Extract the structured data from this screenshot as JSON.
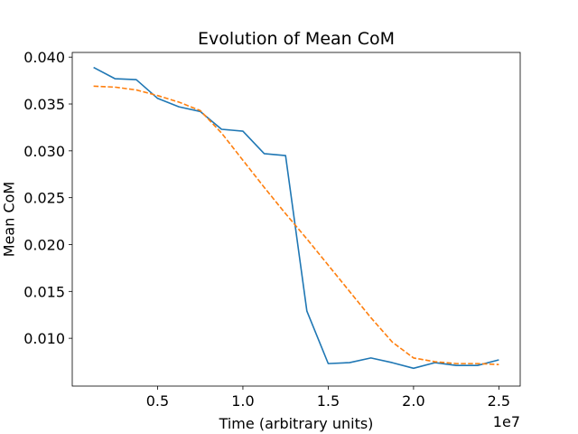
{
  "chart_data": {
    "type": "line",
    "title": "Evolution of Mean CoM",
    "xlabel": "Time (arbitrary units)",
    "ylabel": "Mean CoM",
    "x_offset_text": "1e7",
    "xlim": [
      0.0,
      26250000.0
    ],
    "ylim": [
      0.0049,
      0.0405
    ],
    "x_ticks": [
      5000000,
      10000000,
      15000000,
      20000000,
      25000000
    ],
    "x_tick_labels": [
      "0.5",
      "1.0",
      "1.5",
      "2.0",
      "2.5"
    ],
    "y_ticks": [
      0.01,
      0.015,
      0.02,
      0.025,
      0.03,
      0.035,
      0.04
    ],
    "y_tick_labels": [
      "0.010",
      "0.015",
      "0.020",
      "0.025",
      "0.030",
      "0.035",
      "0.040"
    ],
    "grid": false,
    "series": [
      {
        "color": "#1f77b4",
        "style": "solid",
        "x": [
          1250000,
          2500000,
          3750000,
          5000000,
          6250000,
          7500000,
          8750000,
          10000000,
          11250000,
          12500000,
          13750000,
          15000000,
          16250000,
          17500000,
          18750000,
          20000000,
          21250000,
          22500000,
          23750000,
          25000000
        ],
        "y": [
          0.0389,
          0.0377,
          0.0376,
          0.0356,
          0.0347,
          0.0342,
          0.0323,
          0.0321,
          0.0297,
          0.0295,
          0.0129,
          0.0073,
          0.0074,
          0.0079,
          0.0074,
          0.0068,
          0.0074,
          0.0071,
          0.0071,
          0.0077
        ]
      },
      {
        "color": "#ff7f0e",
        "style": "dashed",
        "x": [
          1250000,
          2500000,
          3750000,
          5000000,
          6250000,
          7500000,
          8750000,
          10000000,
          11250000,
          12500000,
          13750000,
          15000000,
          16250000,
          17500000,
          18750000,
          20000000,
          21250000,
          22500000,
          23750000,
          25000000
        ],
        "y": [
          0.0369,
          0.0368,
          0.0365,
          0.0359,
          0.0352,
          0.0343,
          0.0319,
          0.029,
          0.0261,
          0.0233,
          0.0206,
          0.0178,
          0.015,
          0.0122,
          0.0096,
          0.0079,
          0.0075,
          0.0073,
          0.0073,
          0.0072
        ]
      }
    ]
  }
}
